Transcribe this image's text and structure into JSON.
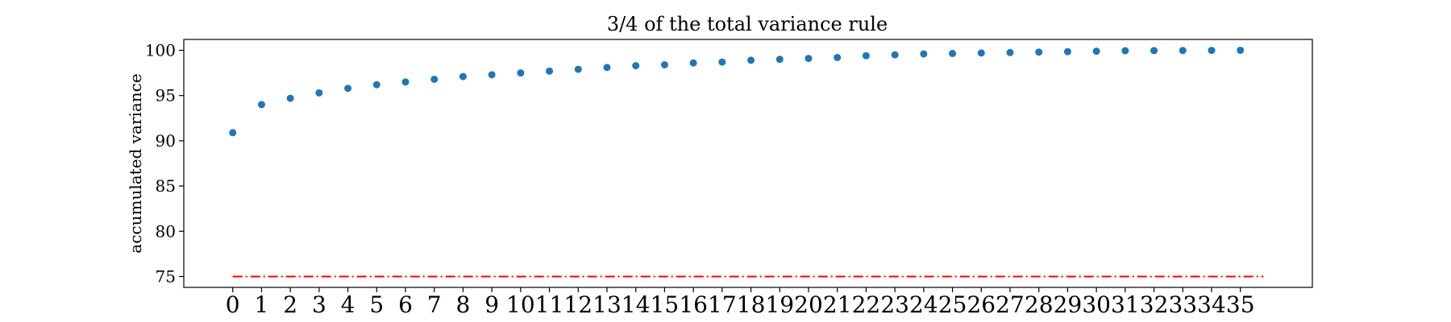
{
  "chart_data": {
    "type": "scatter",
    "title": "3/4 of the total variance rule",
    "xlabel": "",
    "ylabel": "accumulated variance",
    "x": [
      0,
      1,
      2,
      3,
      4,
      5,
      6,
      7,
      8,
      9,
      10,
      11,
      12,
      13,
      14,
      15,
      16,
      17,
      18,
      19,
      20,
      21,
      22,
      23,
      24,
      25,
      26,
      27,
      28,
      29,
      30,
      31,
      32,
      33,
      34,
      35
    ],
    "y": [
      90.9,
      94.0,
      94.7,
      95.3,
      95.8,
      96.2,
      96.5,
      96.8,
      97.1,
      97.3,
      97.5,
      97.7,
      97.9,
      98.1,
      98.3,
      98.4,
      98.6,
      98.7,
      98.9,
      99.0,
      99.1,
      99.2,
      99.4,
      99.5,
      99.6,
      99.65,
      99.7,
      99.75,
      99.8,
      99.85,
      99.9,
      99.95,
      99.97,
      99.98,
      99.99,
      100.0
    ],
    "xticks": [
      "0",
      "1",
      "2",
      "3",
      "4",
      "5",
      "6",
      "7",
      "8",
      "9",
      "10",
      "11",
      "12",
      "13",
      "14",
      "15",
      "16",
      "17",
      "18",
      "19",
      "20",
      "21",
      "22",
      "23",
      "24",
      "25",
      "26",
      "27",
      "28",
      "29",
      "30",
      "31",
      "32",
      "33",
      "34",
      "35"
    ],
    "yticks": [
      "75",
      "80",
      "85",
      "90",
      "95",
      "100"
    ],
    "xlim": [
      -1.7,
      37.5
    ],
    "ylim": [
      73.8,
      101.2
    ],
    "grid": false,
    "point_color": "#1f77b4",
    "reference_line": {
      "y": 75,
      "x_start": 0,
      "x_end": 35.8,
      "color": "#ff0000",
      "style": "dash-dot"
    }
  }
}
